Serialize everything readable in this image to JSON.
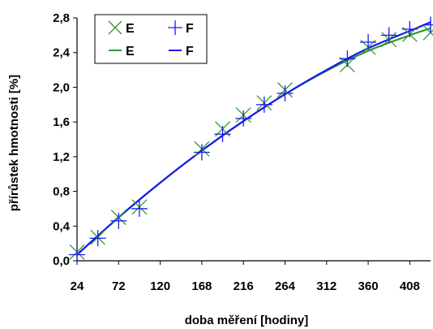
{
  "chart_data": {
    "type": "scatter",
    "title": "",
    "xlabel": "doba měření [hodiny]",
    "ylabel": "přírůstek hmotnosti [%]",
    "xlim": [
      24,
      432
    ],
    "ylim": [
      0,
      2.8
    ],
    "x_ticks": [
      24,
      72,
      120,
      168,
      216,
      264,
      312,
      360,
      408
    ],
    "x_tick_labels": [
      "24",
      "72",
      "120",
      "168",
      "216",
      "264",
      "312",
      "360",
      "408"
    ],
    "y_ticks": [
      0,
      0.4,
      0.8,
      1.2,
      1.6,
      2.0,
      2.4,
      2.8
    ],
    "y_tick_labels": [
      "0,0",
      "0,4",
      "0,8",
      "1,2",
      "1,6",
      "2,0",
      "2,4",
      "2,8"
    ],
    "grid": false,
    "legend_position": "top-left",
    "colors": {
      "E": "#339933",
      "F": "#1a1aee"
    },
    "legend": [
      {
        "label": "E",
        "kind": "marker",
        "marker": "x",
        "series": "E"
      },
      {
        "label": "F",
        "kind": "marker",
        "marker": "+",
        "series": "F"
      },
      {
        "label": "E",
        "kind": "line",
        "series": "E"
      },
      {
        "label": "F",
        "kind": "line",
        "series": "F"
      }
    ],
    "series": [
      {
        "name": "E",
        "marker": "x",
        "points": [
          [
            24,
            0.1
          ],
          [
            48,
            0.27
          ],
          [
            72,
            0.5
          ],
          [
            96,
            0.62
          ],
          [
            168,
            1.29
          ],
          [
            192,
            1.52
          ],
          [
            216,
            1.68
          ],
          [
            240,
            1.82
          ],
          [
            264,
            1.97
          ],
          [
            336,
            2.26
          ],
          [
            360,
            2.46
          ],
          [
            384,
            2.55
          ],
          [
            408,
            2.61
          ],
          [
            432,
            2.63
          ]
        ],
        "trend": [
          [
            24,
            0.07
          ],
          [
            72,
            0.5
          ],
          [
            120,
            0.9
          ],
          [
            168,
            1.27
          ],
          [
            216,
            1.61
          ],
          [
            264,
            1.92
          ],
          [
            312,
            2.19
          ],
          [
            360,
            2.42
          ],
          [
            408,
            2.6
          ],
          [
            432,
            2.68
          ]
        ]
      },
      {
        "name": "F",
        "marker": "+",
        "points": [
          [
            24,
            0.07
          ],
          [
            48,
            0.26
          ],
          [
            72,
            0.46
          ],
          [
            96,
            0.6
          ],
          [
            168,
            1.25
          ],
          [
            192,
            1.46
          ],
          [
            216,
            1.64
          ],
          [
            240,
            1.8
          ],
          [
            264,
            1.93
          ],
          [
            336,
            2.33
          ],
          [
            360,
            2.52
          ],
          [
            384,
            2.6
          ],
          [
            408,
            2.67
          ],
          [
            432,
            2.72
          ]
        ],
        "trend": [
          [
            24,
            0.07
          ],
          [
            72,
            0.5
          ],
          [
            120,
            0.9
          ],
          [
            168,
            1.27
          ],
          [
            216,
            1.61
          ],
          [
            264,
            1.92
          ],
          [
            312,
            2.2
          ],
          [
            360,
            2.45
          ],
          [
            408,
            2.65
          ],
          [
            432,
            2.75
          ]
        ]
      }
    ]
  }
}
